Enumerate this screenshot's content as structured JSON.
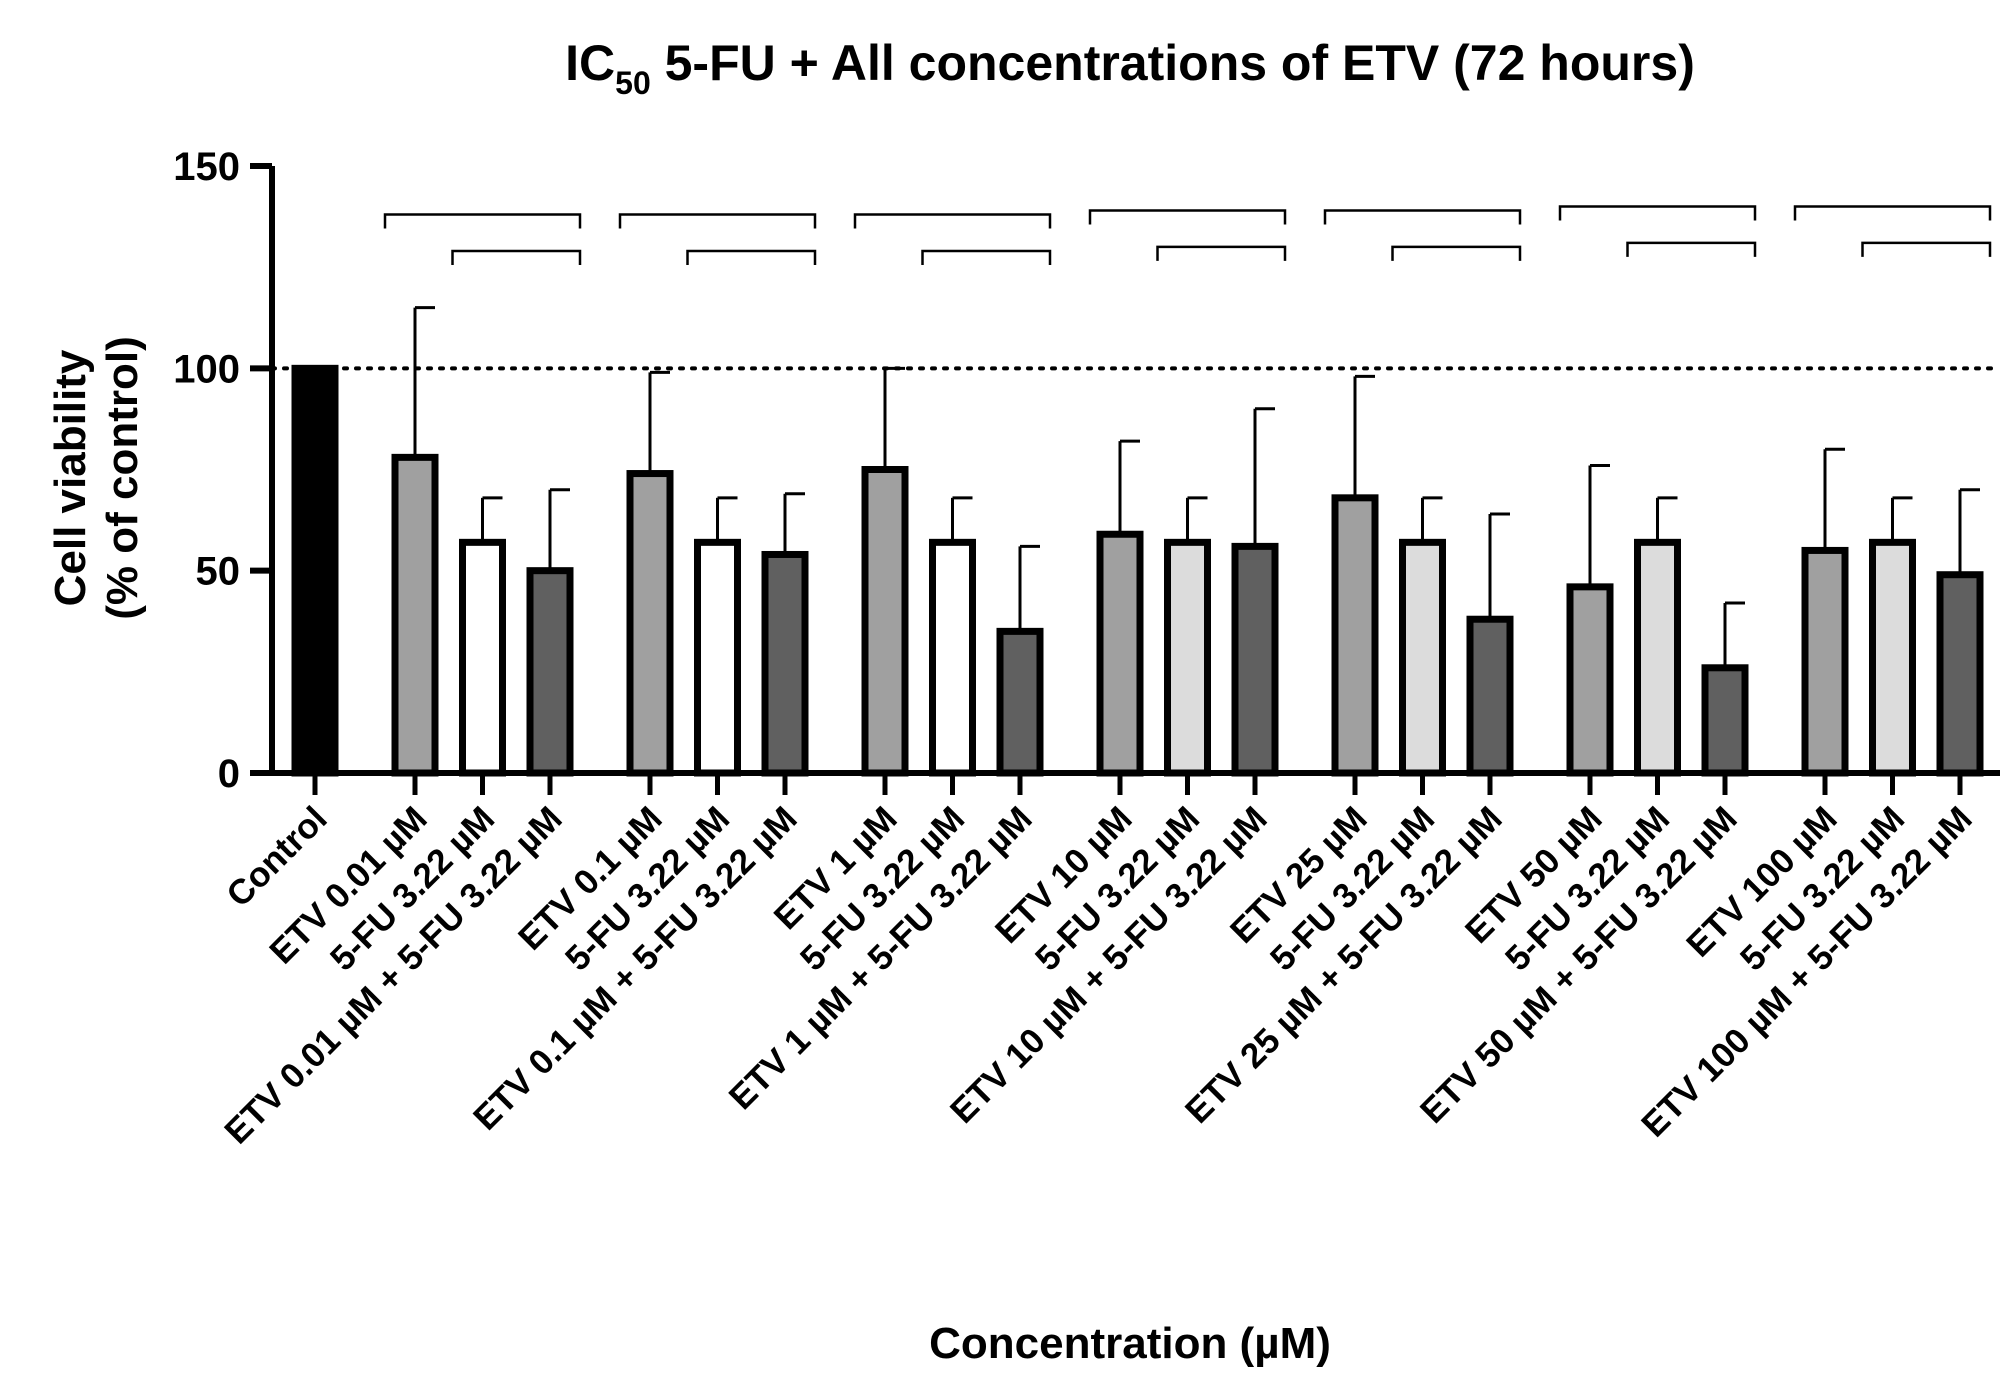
{
  "chart_data": {
    "type": "bar",
    "title_main": "IC",
    "title_sub": "50",
    "title_rest": " 5-FU + All concentrations of ETV (72 hours)",
    "xlabel": "Concentration (µM)",
    "ylabel_line1": "Cell viability",
    "ylabel_line2": "(% of control)",
    "ylim": [
      0,
      150
    ],
    "yticks": [
      0,
      50,
      100,
      150
    ],
    "ytick_labels": [
      "0",
      "50",
      "100",
      "150"
    ],
    "reference_line": 100,
    "categories": [
      "Control",
      "ETV 0.01 µM",
      "5-FU 3.22 µM",
      "ETV 0.01 µM + 5-FU 3.22 µM",
      "ETV 0.1 µM",
      "5-FU 3.22 µM",
      "ETV 0.1 µM + 5-FU 3.22 µM",
      "ETV 1 µM",
      "5-FU 3.22 µM",
      "ETV 1 µM + 5-FU 3.22 µM",
      "ETV 10 µM",
      "5-FU 3.22 µM",
      "ETV 10 µM + 5-FU 3.22 µM",
      "ETV 25 µM",
      "5-FU 3.22 µM",
      "ETV 25 µM + 5-FU 3.22 µM",
      "ETV 50 µM",
      "5-FU 3.22 µM",
      "ETV 50 µM + 5-FU 3.22 µM",
      "ETV 100 µM",
      "5-FU 3.22 µM",
      "ETV 100 µM + 5-FU 3.22 µM"
    ],
    "values": [
      100,
      78,
      57,
      50,
      74,
      57,
      54,
      75,
      57,
      35,
      59,
      57,
      56,
      68,
      57,
      38,
      46,
      57,
      26,
      55,
      57,
      49
    ],
    "errors": [
      0,
      37,
      11,
      20,
      25,
      11,
      15,
      25,
      11,
      21,
      23,
      11,
      34,
      30,
      11,
      26,
      30,
      11,
      16,
      25,
      11,
      21
    ],
    "bar_fills": [
      "#000000",
      "#a0a0a0",
      "#ffffff",
      "#606060",
      "#a0a0a0",
      "#ffffff",
      "#606060",
      "#a0a0a0",
      "#ffffff",
      "#606060",
      "#a0a0a0",
      "#dcdcdc",
      "#606060",
      "#a0a0a0",
      "#dcdcdc",
      "#606060",
      "#a0a0a0",
      "#dcdcdc",
      "#606060",
      "#a0a0a0",
      "#dcdcdc",
      "#606060"
    ],
    "brackets": [
      {
        "from": 1,
        "to": 3,
        "level": 138
      },
      {
        "from": 2,
        "to": 3,
        "level": 129
      },
      {
        "from": 4,
        "to": 6,
        "level": 138
      },
      {
        "from": 5,
        "to": 6,
        "level": 129
      },
      {
        "from": 7,
        "to": 9,
        "level": 138
      },
      {
        "from": 8,
        "to": 9,
        "level": 129
      },
      {
        "from": 10,
        "to": 12,
        "level": 139
      },
      {
        "from": 11,
        "to": 12,
        "level": 130
      },
      {
        "from": 13,
        "to": 15,
        "level": 139
      },
      {
        "from": 14,
        "to": 15,
        "level": 130
      },
      {
        "from": 16,
        "to": 18,
        "level": 140
      },
      {
        "from": 17,
        "to": 18,
        "level": 131
      },
      {
        "from": 19,
        "to": 21,
        "level": 140
      },
      {
        "from": 20,
        "to": 21,
        "level": 131
      }
    ],
    "grid": false,
    "legend": "none"
  }
}
